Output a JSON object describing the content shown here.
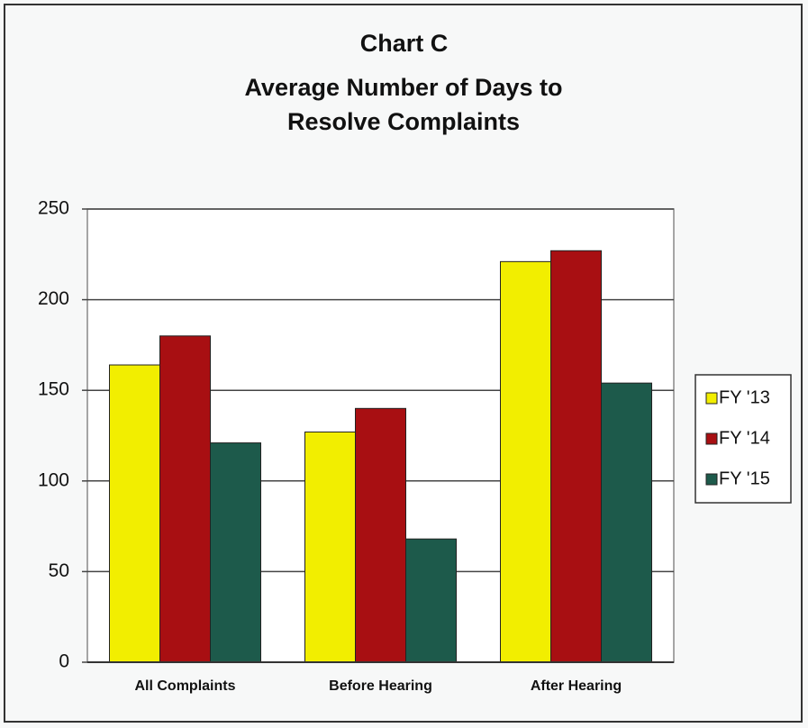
{
  "chart_data": {
    "type": "bar",
    "title": "Chart C",
    "subtitle": "Average Number of Days to Resolve Complaints",
    "categories": [
      "All Complaints",
      "Before Hearing",
      "After Hearing"
    ],
    "series": [
      {
        "name": "FY '13",
        "color": "#f2ee00",
        "values": [
          164,
          127,
          221
        ]
      },
      {
        "name": "FY '14",
        "color": "#a80f12",
        "values": [
          180,
          140,
          227
        ]
      },
      {
        "name": "FY '15",
        "color": "#1d5a4b",
        "values": [
          121,
          68,
          154
        ]
      }
    ],
    "ylim": [
      0,
      250
    ],
    "yticks": [
      0,
      50,
      100,
      150,
      200,
      250
    ],
    "grid": true,
    "legend": "right"
  }
}
